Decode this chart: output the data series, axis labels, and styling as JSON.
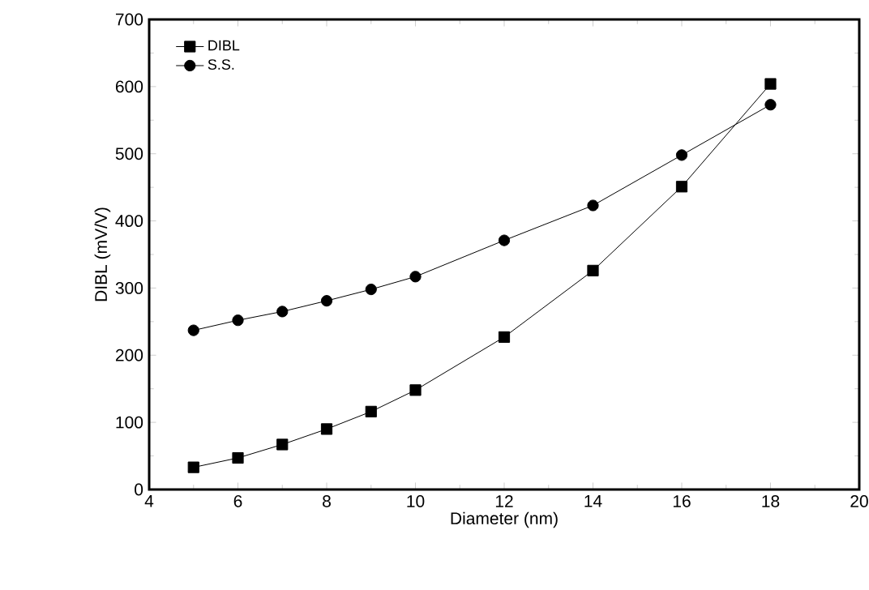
{
  "chart_data": {
    "type": "line",
    "xlabel": "Diameter (nm)",
    "ylabel": "DIBL (mV/V)",
    "x": [
      5,
      6,
      7,
      8,
      9,
      10,
      12,
      14,
      16,
      18
    ],
    "series": [
      {
        "name": "DIBL",
        "color": "#000000",
        "marker": "square",
        "values": [
          33,
          47,
          67,
          90,
          116,
          148,
          227,
          326,
          451,
          604
        ]
      },
      {
        "name": "S.S.",
        "color": "#000000",
        "marker": "circle",
        "values": [
          237,
          252,
          265,
          281,
          298,
          317,
          371,
          423,
          498,
          573
        ]
      }
    ],
    "xlim": [
      4,
      20
    ],
    "ylim": [
      0,
      700
    ],
    "xticks": [
      4,
      6,
      8,
      10,
      12,
      14,
      16,
      18,
      20
    ],
    "yticks": [
      0,
      100,
      200,
      300,
      400,
      500,
      600,
      700
    ],
    "legend": "top left",
    "grid": false,
    "line_style": "solid"
  }
}
